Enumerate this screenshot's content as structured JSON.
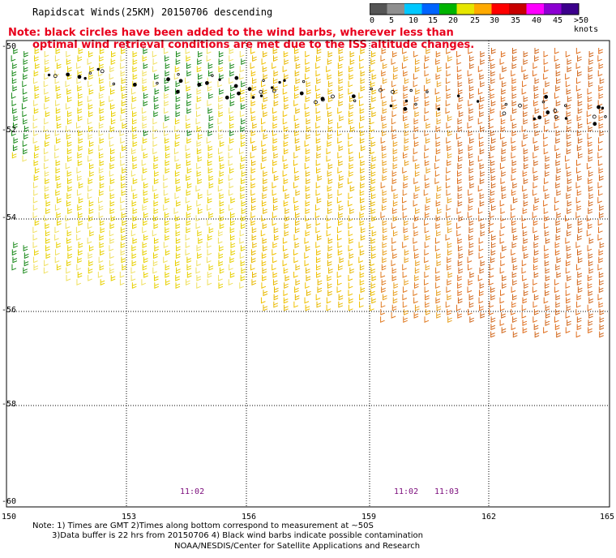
{
  "title": "Rapidscat Winds(25KM) 20150706 descending",
  "note_line1": "Note: black circles have been added to the wind barbs, wherever less than",
  "note_line2": "optimal wind retrieval conditions are met due to the ISS altitude changes.",
  "legend": {
    "labels": [
      "0",
      "5",
      "10",
      "15",
      "20",
      "25",
      "30",
      "35",
      "40",
      "45",
      ">50 knots"
    ],
    "colors": [
      "#555555",
      "#8f8f8f",
      "#00c8ff",
      "#0064ff",
      "#00b400",
      "#e6e600",
      "#ffaa00",
      "#ff0000",
      "#c80000",
      "#ff00ff",
      "#8c00d2",
      "#3c008c"
    ]
  },
  "lat_labels": [
    "-50",
    "-52",
    "-54",
    "-56",
    "-58",
    "-60"
  ],
  "lon_labels": [
    "150",
    "153",
    "156",
    "159",
    "162",
    "165"
  ],
  "time_labels": [
    "11:02",
    "11:02",
    "11:03"
  ],
  "footer": {
    "line1": "Note: 1) Times are GMT 2)Times along bottom correspond to measurement at ~50S",
    "line2": "3)Data buffer is 22 hrs from 20150706 4) Black wind barbs indicate possible contamination",
    "line3": "NOAA/NESDIS/Center for Satellite Applications and Research"
  }
}
